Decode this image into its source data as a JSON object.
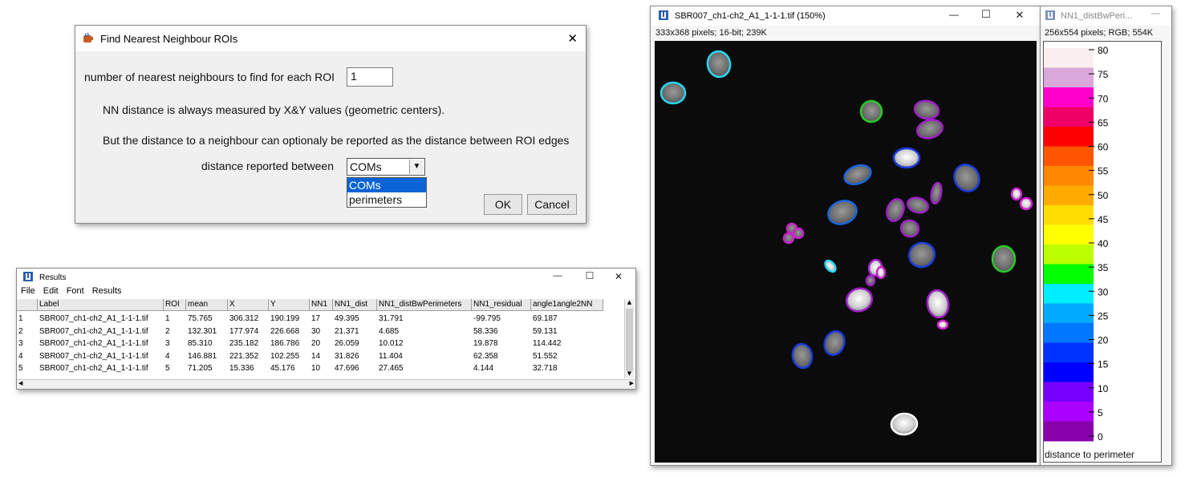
{
  "dialog": {
    "title": "Find Nearest Neighbour ROIs",
    "nn_label": "number of nearest neighbours to find for each ROI",
    "nn_value": "1",
    "note1": "NN distance is always measured by X&Y values (geometric centers).",
    "note2": "But the distance to a neighbour can optionaly be reported as the distance between ROI edges",
    "dist_label": "distance reported between",
    "dist_selected": "COMs",
    "options": [
      "COMs",
      "perimeters"
    ],
    "ok": "OK",
    "cancel": "Cancel",
    "close_glyph": "✕"
  },
  "results": {
    "title": "Results",
    "menu": [
      "File",
      "Edit",
      "Font",
      "Results"
    ],
    "columns": [
      "",
      "Label",
      "ROI",
      "mean",
      "X",
      "Y",
      "NN1",
      "NN1_dist",
      "NN1_distBwPerimeters",
      "NN1_residual",
      "angle1angle2NN"
    ],
    "rows": [
      [
        "1",
        "SBR007_ch1-ch2_A1_1-1-1.tif",
        "1",
        "75.765",
        "306.312",
        "190.199",
        "17",
        "49.395",
        "31.791",
        "-99.795",
        "69.187"
      ],
      [
        "2",
        "SBR007_ch1-ch2_A1_1-1-1.tif",
        "2",
        "132.301",
        "177.974",
        "226.668",
        "30",
        "21.371",
        "4.685",
        "58.336",
        "59.131"
      ],
      [
        "3",
        "SBR007_ch1-ch2_A1_1-1-1.tif",
        "3",
        "85.310",
        "235.182",
        "186.786",
        "20",
        "26.059",
        "10.012",
        "19.878",
        "114.442"
      ],
      [
        "4",
        "SBR007_ch1-ch2_A1_1-1-1.tif",
        "4",
        "146.881",
        "221.352",
        "102.255",
        "14",
        "31.826",
        "11.404",
        "62.358",
        "51.552"
      ],
      [
        "5",
        "SBR007_ch1-ch2_A1_1-1-1.tif",
        "5",
        "71.205",
        "15.336",
        "45.176",
        "10",
        "47.696",
        "27.465",
        "4.144",
        "32.718"
      ]
    ],
    "win_controls": [
      "—",
      "☐",
      "✕"
    ]
  },
  "image_window": {
    "title": "SBR007_ch1-ch2_A1_1-1-1.tif (150%)",
    "info": "333x368 pixels; 16-bit; 239K",
    "win_controls": [
      "—",
      "☐",
      "✕"
    ]
  },
  "lut_window": {
    "title": "NN1_distBwPeri...",
    "info": "256x554 pixels; RGB; 554K",
    "ticks": [
      "80",
      "75",
      "70",
      "65",
      "60",
      "55",
      "50",
      "45",
      "40",
      "35",
      "30",
      "25",
      "20",
      "15",
      "10",
      "5",
      "0"
    ],
    "caption": "distance to perimeter",
    "close_glyph": "—",
    "colors": [
      "#fbeeee",
      "#d9a8d9",
      "#ff00cc",
      "#ee0066",
      "#ff0000",
      "#ff5500",
      "#ff8800",
      "#ffaa00",
      "#ffdd00",
      "#ffff00",
      "#bbff00",
      "#00ff00",
      "#00eeff",
      "#00aaff",
      "#0077ff",
      "#0033ff",
      "#0000ff",
      "#7700ff",
      "#aa00ff",
      "#8800aa"
    ]
  },
  "nuclei_colors": {
    "cyan": "#27d9f2",
    "green": "#27cc27",
    "blue": "#1a66e0",
    "darkblue": "#1a3ce0",
    "purple": "#a020c8",
    "magenta": "#d020d0",
    "white": "#ffffff"
  }
}
